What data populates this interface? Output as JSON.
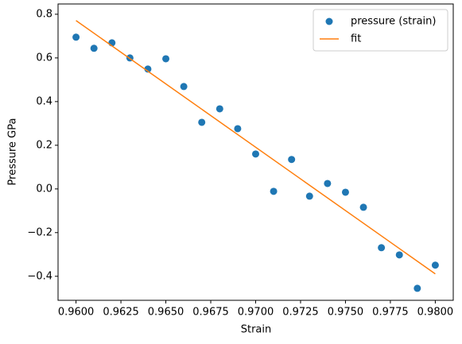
{
  "chart_data": {
    "type": "scatter",
    "xlabel": "Strain",
    "ylabel": "Pressure GPa",
    "xlim": [
      0.959,
      0.981
    ],
    "ylim": [
      -0.51,
      0.847
    ],
    "xticks": [
      {
        "value": 0.96,
        "label": "0.9600"
      },
      {
        "value": 0.9625,
        "label": "0.9625"
      },
      {
        "value": 0.965,
        "label": "0.9650"
      },
      {
        "value": 0.9675,
        "label": "0.9675"
      },
      {
        "value": 0.97,
        "label": "0.9700"
      },
      {
        "value": 0.9725,
        "label": "0.9725"
      },
      {
        "value": 0.975,
        "label": "0.9750"
      },
      {
        "value": 0.9775,
        "label": "0.9775"
      },
      {
        "value": 0.98,
        "label": "0.9800"
      }
    ],
    "yticks": [
      {
        "value": -0.4,
        "label": "−0.4"
      },
      {
        "value": -0.2,
        "label": "−0.2"
      },
      {
        "value": 0,
        "label": "0.0"
      },
      0.2,
      0.4,
      0.6,
      0.8
    ],
    "legend": "upper right",
    "series": [
      {
        "name": "pressure (strain)",
        "type": "scatter",
        "color": "#1f77b4",
        "x": [
          0.96,
          0.961,
          0.962,
          0.963,
          0.964,
          0.965,
          0.966,
          0.967,
          0.968,
          0.969,
          0.97,
          0.971,
          0.972,
          0.973,
          0.974,
          0.975,
          0.976,
          0.977,
          0.978,
          0.979,
          0.98
        ],
        "values": [
          0.695,
          0.644,
          0.669,
          0.6,
          0.549,
          0.596,
          0.469,
          0.305,
          0.367,
          0.276,
          0.16,
          -0.011,
          0.135,
          -0.033,
          0.025,
          -0.015,
          -0.084,
          -0.269,
          -0.302,
          -0.455,
          -0.349
        ]
      },
      {
        "name": "fit",
        "type": "line",
        "color": "#ff7f0e",
        "x": [
          0.96,
          0.98
        ],
        "values": [
          0.771,
          -0.389
        ]
      }
    ]
  }
}
